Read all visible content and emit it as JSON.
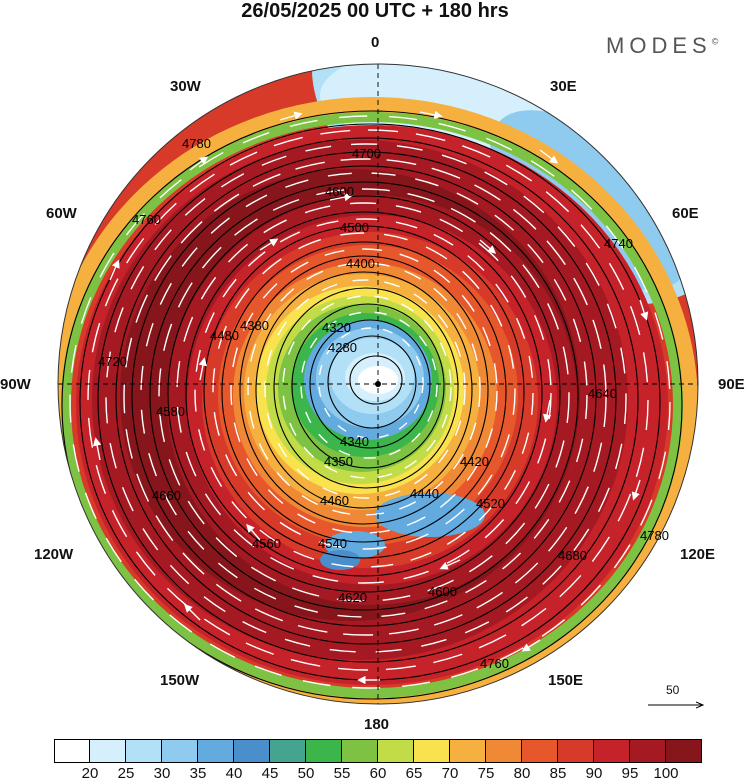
{
  "title": "26/05/2025  00 UTC  + 180 hrs",
  "brand": {
    "name": "MODES",
    "mark": "©"
  },
  "longitude_labels": {
    "n": "0",
    "nne": "30E",
    "ne": "60E",
    "e": "90E",
    "se": "120E",
    "sse": "150E",
    "s": "180",
    "ssw": "150W",
    "sw": "120W",
    "w": "90W",
    "nw": "60W",
    "nnw": "30W"
  },
  "contour_labels": [
    "4780",
    "4760",
    "4740",
    "4720",
    "4700",
    "4680",
    "4660",
    "4640",
    "4620",
    "4600",
    "4580",
    "4560",
    "4540",
    "4520",
    "4500",
    "4480",
    "4460",
    "4440",
    "4420",
    "4400",
    "4380",
    "4360",
    "4350",
    "4340",
    "4320",
    "4300",
    "4280"
  ],
  "colorbar": {
    "colors": [
      "#ffffff",
      "#d5f0fc",
      "#b2e0f7",
      "#8ecbee",
      "#63aadf",
      "#4a8fcc",
      "#44a48f",
      "#3cb54a",
      "#7dc243",
      "#c2dc47",
      "#f8e24e",
      "#f5b040",
      "#f08935",
      "#e6582c",
      "#d73a29",
      "#c5222a",
      "#a51a22",
      "#86161c"
    ],
    "ticks": [
      "20",
      "25",
      "30",
      "35",
      "40",
      "45",
      "50",
      "55",
      "60",
      "65",
      "70",
      "75",
      "80",
      "85",
      "90",
      "95",
      "100"
    ]
  },
  "reference_vector": {
    "label": "50"
  }
}
